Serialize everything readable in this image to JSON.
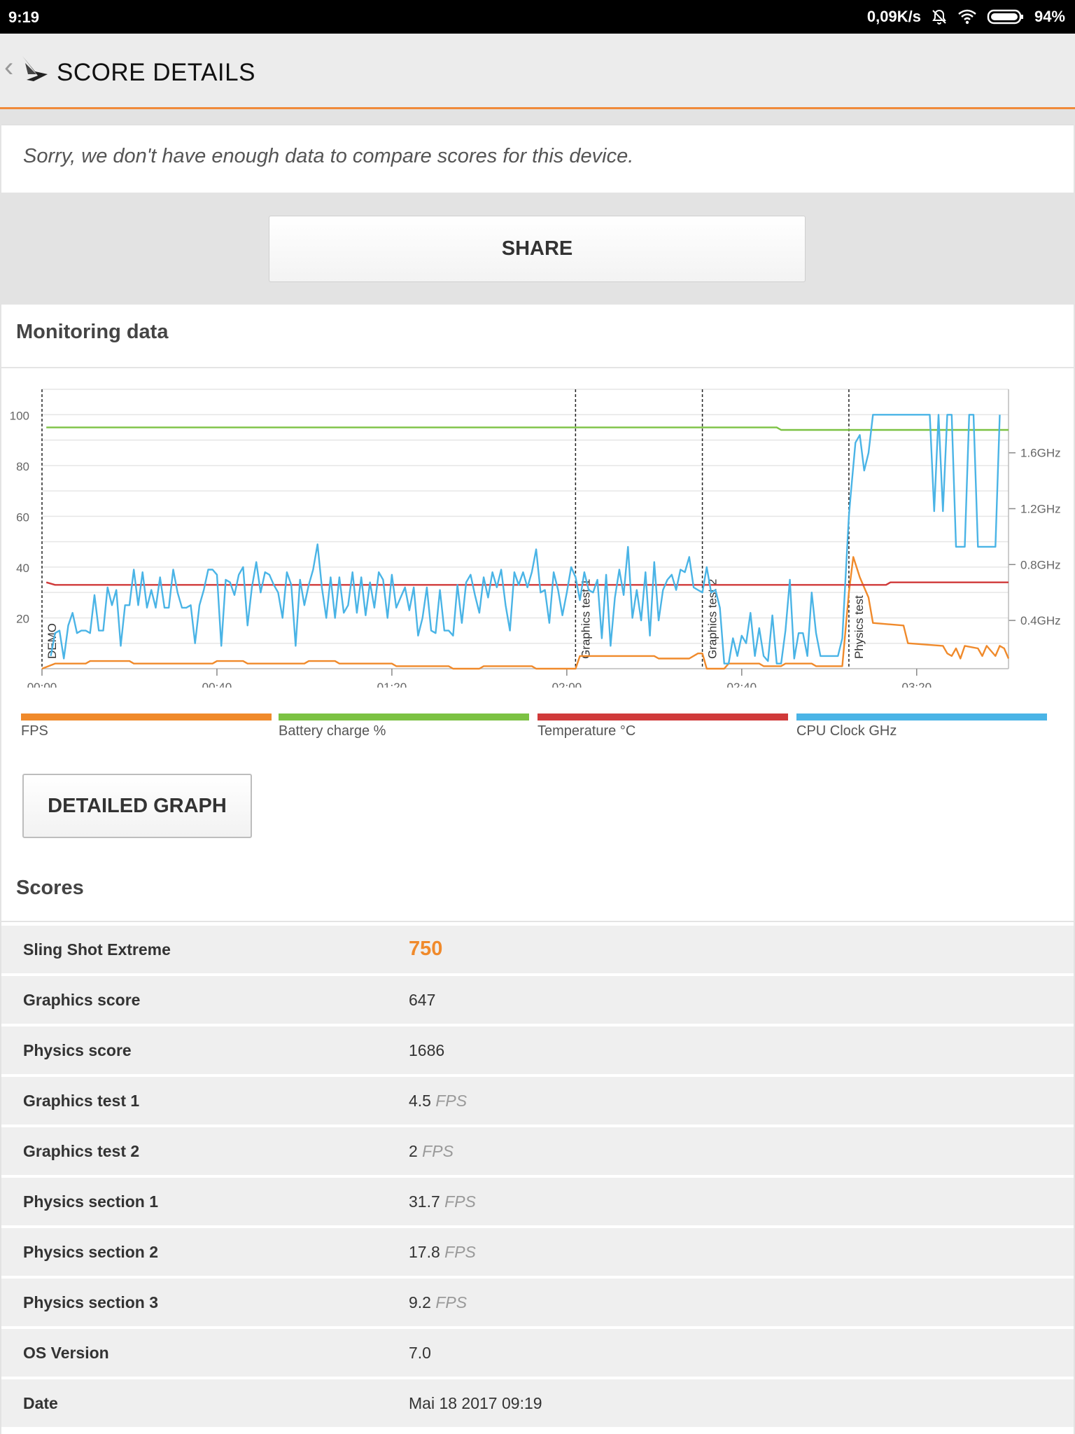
{
  "status_bar": {
    "time": "9:19",
    "net_speed": "0,09K/s",
    "battery": "94%"
  },
  "app_bar": {
    "title": "SCORE DETAILS"
  },
  "notice": "Sorry, we don't have enough data to compare scores for this device.",
  "share_label": "SHARE",
  "monitoring": {
    "title": "Monitoring data"
  },
  "chart_data": {
    "type": "line",
    "x_ticks": [
      "00:00",
      "00:40",
      "01:20",
      "02:00",
      "02:40",
      "03:20"
    ],
    "x_range_seconds": [
      0,
      221
    ],
    "y_ticks_left": [
      20,
      40,
      60,
      80,
      100
    ],
    "y_range_left": [
      0,
      110
    ],
    "y_ticks_right": [
      "0.4GHz",
      "0.8GHz",
      "1.2GHz",
      "1.6GHz"
    ],
    "grid": true,
    "sections": [
      {
        "label": "DEMO",
        "t": 0
      },
      {
        "label": "Graphics test 1",
        "t": 122
      },
      {
        "label": "Graphics test 2",
        "t": 151
      },
      {
        "label": "Physics test",
        "t": 184.5
      }
    ],
    "series": [
      {
        "name": "FPS",
        "color": "#f08a2b",
        "points": [
          [
            0,
            0
          ],
          [
            3,
            2
          ],
          [
            10,
            2
          ],
          [
            11,
            3
          ],
          [
            20,
            3
          ],
          [
            21,
            2
          ],
          [
            39,
            2
          ],
          [
            40,
            3
          ],
          [
            46,
            3
          ],
          [
            47,
            2
          ],
          [
            60,
            2
          ],
          [
            61,
            3
          ],
          [
            67,
            3
          ],
          [
            68,
            2
          ],
          [
            80,
            2
          ],
          [
            81,
            1
          ],
          [
            93,
            1
          ],
          [
            94,
            0
          ],
          [
            100,
            0
          ],
          [
            101,
            1
          ],
          [
            112,
            1
          ],
          [
            113,
            0
          ],
          [
            121,
            0
          ],
          [
            122,
            0
          ],
          [
            123,
            5
          ],
          [
            140,
            5
          ],
          [
            141,
            4
          ],
          [
            148,
            4
          ],
          [
            150,
            6
          ],
          [
            151,
            6
          ],
          [
            152,
            0
          ],
          [
            156,
            0
          ],
          [
            157,
            2
          ],
          [
            164,
            2
          ],
          [
            165,
            1
          ],
          [
            169,
            1
          ],
          [
            170,
            2
          ],
          [
            176,
            2
          ],
          [
            177,
            1
          ],
          [
            183,
            1
          ],
          [
            184.5,
            30
          ],
          [
            185.5,
            44
          ],
          [
            187,
            36
          ],
          [
            189,
            28
          ],
          [
            190,
            18
          ],
          [
            197,
            17
          ],
          [
            198,
            10
          ],
          [
            206,
            9
          ],
          [
            207,
            6
          ],
          [
            208,
            5
          ],
          [
            209,
            8
          ],
          [
            210,
            4
          ],
          [
            211,
            9
          ],
          [
            214,
            8
          ],
          [
            215,
            5
          ],
          [
            216,
            9
          ],
          [
            218,
            5
          ],
          [
            219,
            9
          ],
          [
            220,
            8
          ],
          [
            221,
            4
          ]
        ]
      },
      {
        "name": "Battery charge %",
        "color": "#7cc243",
        "points": [
          [
            1,
            95
          ],
          [
            168,
            95
          ],
          [
            169,
            94
          ],
          [
            221,
            94
          ]
        ]
      },
      {
        "name": "Temperature °C",
        "color": "#d03a3a",
        "points": [
          [
            1,
            34
          ],
          [
            3,
            33
          ],
          [
            150,
            33
          ],
          [
            151,
            33
          ],
          [
            193,
            33
          ],
          [
            194,
            34
          ],
          [
            221,
            34
          ]
        ]
      },
      {
        "name": "CPU Clock GHz",
        "color": "#4ab4e6",
        "points": [
          [
            2,
            5
          ],
          [
            3,
            14
          ],
          [
            4,
            15
          ],
          [
            5,
            4
          ],
          [
            6,
            17
          ],
          [
            7,
            22
          ],
          [
            8,
            14
          ],
          [
            9,
            15
          ],
          [
            10,
            15
          ],
          [
            11,
            14
          ],
          [
            12,
            29
          ],
          [
            13,
            15
          ],
          [
            14,
            15
          ],
          [
            15,
            32
          ],
          [
            16,
            25
          ],
          [
            17,
            31
          ],
          [
            18,
            9
          ],
          [
            19,
            25
          ],
          [
            20,
            25
          ],
          [
            21,
            39
          ],
          [
            22,
            25
          ],
          [
            23,
            38
          ],
          [
            24,
            24
          ],
          [
            25,
            31
          ],
          [
            26,
            24
          ],
          [
            27,
            36
          ],
          [
            28,
            24
          ],
          [
            29,
            24
          ],
          [
            30,
            39
          ],
          [
            31,
            30
          ],
          [
            32,
            24
          ],
          [
            33,
            24
          ],
          [
            34,
            25
          ],
          [
            35,
            10
          ],
          [
            36,
            25
          ],
          [
            37,
            31
          ],
          [
            38,
            39
          ],
          [
            39,
            39
          ],
          [
            40,
            37
          ],
          [
            41,
            9
          ],
          [
            42,
            35
          ],
          [
            43,
            34
          ],
          [
            44,
            29
          ],
          [
            45,
            37
          ],
          [
            46,
            40
          ],
          [
            47,
            17
          ],
          [
            48,
            32
          ],
          [
            49,
            42
          ],
          [
            50,
            30
          ],
          [
            51,
            38
          ],
          [
            52,
            37
          ],
          [
            53,
            33
          ],
          [
            54,
            30
          ],
          [
            55,
            20
          ],
          [
            56,
            38
          ],
          [
            57,
            33
          ],
          [
            58,
            9
          ],
          [
            59,
            35
          ],
          [
            60,
            25
          ],
          [
            61,
            33
          ],
          [
            62,
            39
          ],
          [
            63,
            49
          ],
          [
            64,
            32
          ],
          [
            65,
            20
          ],
          [
            66,
            36
          ],
          [
            67,
            20
          ],
          [
            68,
            36
          ],
          [
            69,
            22
          ],
          [
            70,
            25
          ],
          [
            71,
            38
          ],
          [
            72,
            22
          ],
          [
            73,
            36
          ],
          [
            74,
            21
          ],
          [
            75,
            34
          ],
          [
            76,
            24
          ],
          [
            77,
            38
          ],
          [
            78,
            35
          ],
          [
            79,
            20
          ],
          [
            80,
            37
          ],
          [
            81,
            24
          ],
          [
            82,
            28
          ],
          [
            83,
            32
          ],
          [
            84,
            23
          ],
          [
            85,
            32
          ],
          [
            86,
            13
          ],
          [
            87,
            20
          ],
          [
            88,
            32
          ],
          [
            89,
            15
          ],
          [
            90,
            14
          ],
          [
            91,
            31
          ],
          [
            92,
            15
          ],
          [
            93,
            15
          ],
          [
            94,
            13
          ],
          [
            95,
            33
          ],
          [
            96,
            18
          ],
          [
            97,
            34
          ],
          [
            98,
            37
          ],
          [
            99,
            29
          ],
          [
            100,
            22
          ],
          [
            101,
            36
          ],
          [
            102,
            28
          ],
          [
            103,
            38
          ],
          [
            104,
            32
          ],
          [
            105,
            39
          ],
          [
            106,
            25
          ],
          [
            107,
            15
          ],
          [
            108,
            38
          ],
          [
            109,
            33
          ],
          [
            110,
            38
          ],
          [
            111,
            32
          ],
          [
            112,
            38
          ],
          [
            113,
            47
          ],
          [
            114,
            30
          ],
          [
            115,
            31
          ],
          [
            116,
            18
          ],
          [
            117,
            38
          ],
          [
            118,
            31
          ],
          [
            119,
            21
          ],
          [
            120,
            30
          ],
          [
            121,
            40
          ],
          [
            122,
            36
          ],
          [
            123,
            27
          ],
          [
            124,
            38
          ],
          [
            125,
            31
          ],
          [
            126,
            30
          ],
          [
            127,
            35
          ],
          [
            128,
            12
          ],
          [
            129,
            37
          ],
          [
            130,
            9
          ],
          [
            131,
            28
          ],
          [
            132,
            39
          ],
          [
            133,
            29
          ],
          [
            134,
            48
          ],
          [
            135,
            20
          ],
          [
            136,
            31
          ],
          [
            137,
            19
          ],
          [
            138,
            38
          ],
          [
            139,
            13
          ],
          [
            140,
            42
          ],
          [
            141,
            19
          ],
          [
            142,
            31
          ],
          [
            143,
            35
          ],
          [
            144,
            37
          ],
          [
            145,
            31
          ],
          [
            146,
            39
          ],
          [
            147,
            38
          ],
          [
            148,
            44
          ],
          [
            149,
            32
          ],
          [
            150,
            31
          ],
          [
            151,
            30
          ],
          [
            152,
            40
          ],
          [
            153,
            30
          ],
          [
            154,
            31
          ],
          [
            155,
            24
          ],
          [
            156,
            2
          ],
          [
            157,
            2
          ],
          [
            158,
            12
          ],
          [
            159,
            5
          ],
          [
            160,
            13
          ],
          [
            161,
            10
          ],
          [
            162,
            22
          ],
          [
            163,
            5
          ],
          [
            164,
            16
          ],
          [
            165,
            5
          ],
          [
            166,
            3
          ],
          [
            167,
            21
          ],
          [
            168,
            2
          ],
          [
            169,
            2
          ],
          [
            170,
            15
          ],
          [
            171,
            35
          ],
          [
            172,
            4
          ],
          [
            173,
            14
          ],
          [
            174,
            14
          ],
          [
            175,
            5
          ],
          [
            176,
            30
          ],
          [
            177,
            14
          ],
          [
            178,
            5
          ],
          [
            179,
            5
          ],
          [
            180,
            5
          ],
          [
            181,
            5
          ],
          [
            182,
            5
          ],
          [
            183,
            12
          ],
          [
            184.5,
            60
          ],
          [
            185,
            70
          ],
          [
            186,
            89
          ],
          [
            187,
            92
          ],
          [
            188,
            78
          ],
          [
            189,
            85
          ],
          [
            190,
            100
          ],
          [
            203,
            100
          ],
          [
            204,
            62
          ],
          [
            205,
            100
          ],
          [
            206,
            62
          ],
          [
            207,
            100
          ],
          [
            208,
            100
          ],
          [
            209,
            48
          ],
          [
            210,
            48
          ],
          [
            211,
            48
          ],
          [
            212,
            100
          ],
          [
            213,
            100
          ],
          [
            214,
            48
          ],
          [
            215,
            48
          ],
          [
            216,
            48
          ],
          [
            217,
            48
          ],
          [
            218,
            48
          ],
          [
            219,
            100
          ]
        ]
      }
    ]
  },
  "legend": [
    {
      "label": "FPS",
      "color": "#f08a2b"
    },
    {
      "label": "Battery charge %",
      "color": "#7cc243"
    },
    {
      "label": "Temperature °C",
      "color": "#d03a3a"
    },
    {
      "label": "CPU Clock GHz",
      "color": "#4ab4e6"
    }
  ],
  "detailed_graph_label": "DETAILED GRAPH",
  "scores": {
    "title": "Scores",
    "rows": [
      {
        "label": "Sling Shot Extreme",
        "value": "750",
        "unit": ""
      },
      {
        "label": "Graphics score",
        "value": "647",
        "unit": ""
      },
      {
        "label": "Physics score",
        "value": "1686",
        "unit": ""
      },
      {
        "label": "Graphics test 1",
        "value": "4.5",
        "unit": "FPS"
      },
      {
        "label": "Graphics test 2",
        "value": "2",
        "unit": "FPS"
      },
      {
        "label": "Physics section 1",
        "value": "31.7",
        "unit": "FPS"
      },
      {
        "label": "Physics section 2",
        "value": "17.8",
        "unit": "FPS"
      },
      {
        "label": "Physics section 3",
        "value": "9.2",
        "unit": "FPS"
      },
      {
        "label": "OS Version",
        "value": "7.0",
        "unit": ""
      },
      {
        "label": "Date",
        "value": "Mai 18 2017 09:19",
        "unit": ""
      }
    ]
  }
}
